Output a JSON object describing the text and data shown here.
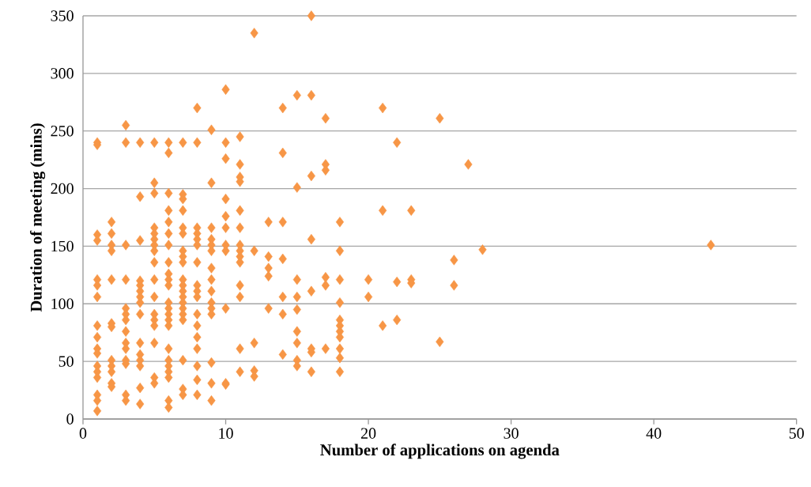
{
  "chart_data": {
    "type": "scatter",
    "xlabel": "Number of applications on agenda",
    "ylabel": "Duration of meeting (mins)",
    "x": [
      1,
      1,
      1,
      1,
      1,
      1,
      1,
      1,
      1,
      1,
      1,
      1,
      1,
      1,
      1,
      1,
      1,
      2,
      2,
      2,
      2,
      2,
      2,
      2,
      2,
      2,
      2,
      2,
      2,
      3,
      3,
      3,
      3,
      3,
      3,
      3,
      3,
      3,
      3,
      3,
      3,
      3,
      3,
      4,
      4,
      4,
      4,
      4,
      4,
      4,
      4,
      4,
      4,
      4,
      4,
      4,
      4,
      4,
      5,
      5,
      5,
      5,
      5,
      5,
      5,
      5,
      5,
      5,
      5,
      5,
      5,
      5,
      5,
      5,
      5,
      6,
      6,
      6,
      6,
      6,
      6,
      6,
      6,
      6,
      6,
      6,
      6,
      6,
      6,
      6,
      6,
      6,
      6,
      6,
      6,
      6,
      6,
      6,
      7,
      7,
      7,
      7,
      7,
      7,
      7,
      7,
      7,
      7,
      7,
      7,
      7,
      7,
      7,
      7,
      7,
      7,
      7,
      7,
      8,
      8,
      8,
      8,
      8,
      8,
      8,
      8,
      8,
      8,
      8,
      8,
      8,
      8,
      8,
      8,
      8,
      9,
      9,
      9,
      9,
      9,
      9,
      9,
      9,
      9,
      9,
      9,
      9,
      9,
      9,
      9,
      10,
      10,
      10,
      10,
      10,
      10,
      10,
      10,
      10,
      10,
      10,
      11,
      11,
      11,
      11,
      11,
      11,
      11,
      11,
      11,
      11,
      11,
      11,
      11,
      11,
      12,
      12,
      12,
      12,
      12,
      13,
      13,
      13,
      13,
      13,
      14,
      14,
      14,
      14,
      14,
      14,
      14,
      15,
      15,
      15,
      15,
      15,
      15,
      15,
      15,
      15,
      16,
      16,
      16,
      16,
      16,
      16,
      16,
      16,
      17,
      17,
      17,
      17,
      17,
      17,
      18,
      18,
      18,
      18,
      18,
      18,
      18,
      18,
      18,
      18,
      18,
      20,
      20,
      21,
      21,
      21,
      22,
      22,
      22,
      23,
      23,
      23,
      25,
      25,
      26,
      26,
      27,
      28,
      44
    ],
    "values": [
      240,
      238,
      160,
      155,
      121,
      116,
      106,
      81,
      71,
      61,
      57,
      46,
      41,
      36,
      21,
      16,
      7,
      171,
      161,
      151,
      146,
      121,
      83,
      80,
      51,
      46,
      41,
      31,
      28,
      255,
      240,
      151,
      121,
      96,
      91,
      86,
      76,
      66,
      61,
      51,
      48,
      21,
      16,
      240,
      193,
      155,
      120,
      116,
      111,
      106,
      101,
      91,
      66,
      56,
      51,
      46,
      27,
      13,
      240,
      205,
      196,
      166,
      161,
      156,
      151,
      146,
      136,
      121,
      106,
      91,
      86,
      81,
      66,
      36,
      31,
      240,
      231,
      196,
      181,
      171,
      161,
      151,
      136,
      126,
      121,
      116,
      101,
      96,
      91,
      86,
      81,
      61,
      51,
      46,
      41,
      36,
      16,
      10,
      240,
      195,
      191,
      181,
      166,
      161,
      146,
      141,
      136,
      121,
      116,
      111,
      106,
      101,
      96,
      91,
      86,
      51,
      26,
      21,
      270,
      240,
      166,
      161,
      156,
      151,
      136,
      116,
      111,
      106,
      91,
      81,
      71,
      61,
      46,
      34,
      21,
      251,
      205,
      166,
      156,
      151,
      146,
      131,
      121,
      111,
      101,
      96,
      91,
      49,
      31,
      16,
      286,
      240,
      226,
      191,
      176,
      166,
      151,
      146,
      96,
      31,
      30,
      245,
      221,
      210,
      206,
      181,
      166,
      151,
      146,
      141,
      136,
      116,
      106,
      61,
      41,
      335,
      146,
      66,
      42,
      37,
      171,
      141,
      131,
      124,
      96,
      270,
      231,
      171,
      139,
      106,
      91,
      56,
      281,
      201,
      121,
      106,
      95,
      76,
      66,
      51,
      46,
      350,
      281,
      211,
      156,
      111,
      61,
      58,
      41,
      261,
      221,
      216,
      123,
      116,
      61,
      171,
      146,
      121,
      101,
      86,
      81,
      76,
      71,
      61,
      53,
      41,
      121,
      106,
      270,
      181,
      81,
      240,
      119,
      86,
      181,
      121,
      118,
      261,
      67,
      138,
      116,
      221,
      147,
      151
    ],
    "color": "#f79646",
    "marker": "diamond",
    "xlim": [
      0,
      50
    ],
    "ylim": [
      0,
      350
    ],
    "xticks": [
      0,
      10,
      20,
      30,
      40,
      50
    ],
    "yticks": [
      0,
      50,
      100,
      150,
      200,
      250,
      300,
      350
    ],
    "grid": "y"
  }
}
